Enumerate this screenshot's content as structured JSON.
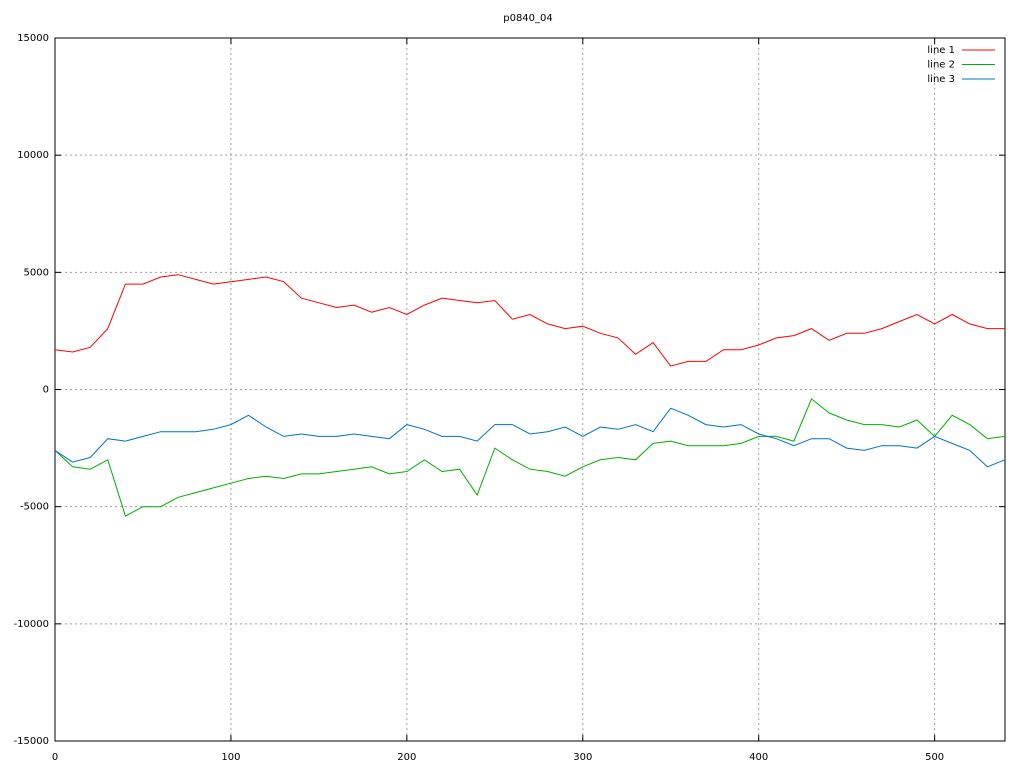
{
  "chart_data": {
    "type": "line",
    "title": "p0840_04",
    "x": [
      0,
      10,
      20,
      30,
      40,
      50,
      60,
      70,
      80,
      90,
      100,
      110,
      120,
      130,
      140,
      150,
      160,
      170,
      180,
      190,
      200,
      210,
      220,
      230,
      240,
      250,
      260,
      270,
      280,
      290,
      300,
      310,
      320,
      330,
      340,
      350,
      360,
      370,
      380,
      390,
      400,
      410,
      420,
      430,
      440,
      450,
      460,
      470,
      480,
      490,
      500,
      510,
      520,
      530,
      540
    ],
    "series": [
      {
        "name": "line 1",
        "color": "#ff0000",
        "values": [
          1700,
          1600,
          1800,
          2600,
          4500,
          4500,
          4800,
          4900,
          4700,
          4500,
          4600,
          4700,
          4800,
          4600,
          3900,
          3700,
          3500,
          3600,
          3300,
          3500,
          3200,
          3600,
          3900,
          3800,
          3700,
          3800,
          3000,
          3200,
          2800,
          2600,
          2700,
          2400,
          2200,
          1500,
          2000,
          1000,
          1200,
          1200,
          1700,
          1700,
          1900,
          2200,
          2300,
          2600,
          2100,
          2400,
          2400,
          2600,
          2900,
          3200,
          2800,
          3200,
          2800,
          2600,
          2600
        ]
      },
      {
        "name": "line 2",
        "color": "#00b000",
        "values": [
          -2600,
          -3300,
          -3400,
          -3000,
          -5400,
          -5000,
          -5000,
          -4600,
          -4400,
          -4200,
          -4000,
          -3800,
          -3700,
          -3800,
          -3600,
          -3600,
          -3500,
          -3400,
          -3300,
          -3600,
          -3500,
          -3000,
          -3500,
          -3400,
          -4500,
          -2500,
          -3000,
          -3400,
          -3500,
          -3700,
          -3300,
          -3000,
          -2900,
          -3000,
          -2300,
          -2200,
          -2400,
          -2400,
          -2400,
          -2300,
          -2000,
          -2000,
          -2200,
          -400,
          -1000,
          -1300,
          -1500,
          -1500,
          -1600,
          -1300,
          -2000,
          -1100,
          -1500,
          -2100,
          -2000
        ]
      },
      {
        "name": "line 3",
        "color": "#0070d0",
        "values": [
          -2600,
          -3100,
          -2900,
          -2100,
          -2200,
          -2000,
          -1800,
          -1800,
          -1800,
          -1700,
          -1500,
          -1100,
          -1600,
          -2000,
          -1900,
          -2000,
          -2000,
          -1900,
          -2000,
          -2100,
          -1500,
          -1700,
          -2000,
          -2000,
          -2200,
          -1500,
          -1500,
          -1900,
          -1800,
          -1600,
          -2000,
          -1600,
          -1700,
          -1500,
          -1800,
          -800,
          -1100,
          -1500,
          -1600,
          -1500,
          -1900,
          -2100,
          -2400,
          -2100,
          -2100,
          -2500,
          -2600,
          -2400,
          -2400,
          -2500,
          -2000,
          -2300,
          -2600,
          -3300,
          -3000
        ]
      }
    ],
    "xlim": [
      0,
      540
    ],
    "ylim": [
      -15000,
      15000
    ],
    "xticks": [
      0,
      100,
      200,
      300,
      400,
      500
    ],
    "yticks": [
      -15000,
      -10000,
      -5000,
      0,
      5000,
      10000,
      15000
    ],
    "grid": true,
    "legend": "top-right"
  }
}
